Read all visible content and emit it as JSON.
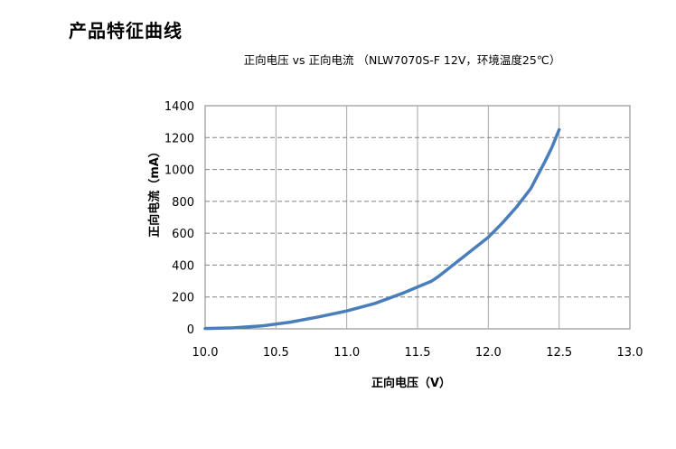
{
  "page_title": "产品特征曲线",
  "chart_data": {
    "type": "line",
    "title": "正向电压 vs 正向电流 （NLW7070S-F 12V，环境温度25℃）",
    "xlabel": "正向电压（V）",
    "ylabel": "正向电流（mA）",
    "xlim": [
      10.0,
      13.0
    ],
    "ylim": [
      0,
      1400
    ],
    "x_ticks": [
      "10.0",
      "10.5",
      "11.0",
      "11.5",
      "12.0",
      "12.5",
      "13.0"
    ],
    "y_ticks": [
      "0",
      "200",
      "400",
      "600",
      "800",
      "1000",
      "1200",
      "1400"
    ],
    "grid": true,
    "legend": "none",
    "series": [
      {
        "color": "#4a7ebb",
        "x": [
          10.0,
          10.2,
          10.4,
          10.6,
          10.8,
          11.0,
          11.2,
          11.4,
          11.6,
          11.65,
          11.8,
          12.0,
          12.1,
          12.2,
          12.3,
          12.4,
          12.45,
          12.5
        ],
        "y": [
          2,
          6,
          18,
          42,
          75,
          112,
          160,
          225,
          300,
          330,
          435,
          575,
          665,
          765,
          880,
          1050,
          1140,
          1250
        ]
      }
    ]
  }
}
